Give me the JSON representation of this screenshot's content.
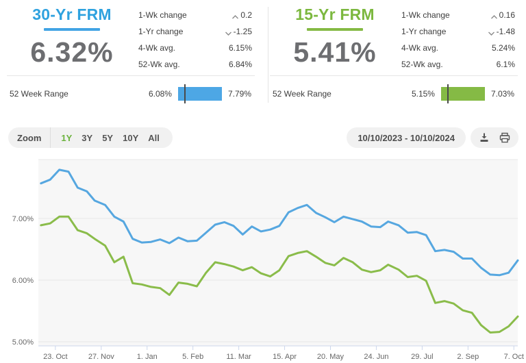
{
  "cards": [
    {
      "title": "30-Yr FRM",
      "value": "6.32%",
      "accent": "#2fa2df",
      "stats": [
        {
          "label": "1-Wk change",
          "value": "0.2",
          "direction": "up"
        },
        {
          "label": "1-Yr change",
          "value": "-1.25",
          "direction": "down"
        },
        {
          "label": "4-Wk avg.",
          "value": "6.15%"
        },
        {
          "label": "52-Wk avg.",
          "value": "6.84%"
        }
      ],
      "range": {
        "label": "52 Week Range",
        "min": "6.08%",
        "max": "7.79%",
        "marker_pct": 14
      }
    },
    {
      "title": "15-Yr FRM",
      "value": "5.41%",
      "accent": "#7cb83f",
      "stats": [
        {
          "label": "1-Wk change",
          "value": "0.16",
          "direction": "up"
        },
        {
          "label": "1-Yr change",
          "value": "-1.48",
          "direction": "down"
        },
        {
          "label": "4-Wk avg.",
          "value": "5.24%"
        },
        {
          "label": "52-Wk avg.",
          "value": "6.1%"
        }
      ],
      "range": {
        "label": "52 Week Range",
        "min": "5.15%",
        "max": "7.03%",
        "marker_pct": 14
      }
    }
  ],
  "toolbar": {
    "zoom_label": "Zoom",
    "zoom_options": [
      {
        "label": "1Y",
        "active": true
      },
      {
        "label": "3Y",
        "active": false
      },
      {
        "label": "5Y",
        "active": false
      },
      {
        "label": "10Y",
        "active": false
      },
      {
        "label": "All",
        "active": false
      }
    ],
    "date_range": "10/10/2023 - 10/10/2024",
    "icons": [
      "download-icon",
      "print-icon"
    ]
  },
  "chart_data": {
    "type": "line",
    "title": "",
    "xlabel": "",
    "ylabel": "",
    "x_min": "2023-10-10",
    "x_max": "2024-10-10",
    "ylim": [
      4.93,
      7.96
    ],
    "grid": true,
    "legend": "none",
    "plot_bg": "#f7f7f7",
    "grid_color": "#e7e7e7",
    "axis_color": "#ccd6eb",
    "label_color": "#666666",
    "y_ticks": [
      {
        "value": 5,
        "label": "5.00%"
      },
      {
        "value": 6,
        "label": "6.00%"
      },
      {
        "value": 7,
        "label": "7.00%"
      }
    ],
    "x_ticks": [
      {
        "date": "2023-10-23",
        "label": "23. Oct"
      },
      {
        "date": "2023-11-27",
        "label": "27. Nov"
      },
      {
        "date": "2024-01-01",
        "label": "1. Jan"
      },
      {
        "date": "2024-02-05",
        "label": "5. Feb"
      },
      {
        "date": "2024-03-11",
        "label": "11. Mar"
      },
      {
        "date": "2024-04-15",
        "label": "15. Apr"
      },
      {
        "date": "2024-05-20",
        "label": "20. May"
      },
      {
        "date": "2024-06-24",
        "label": "24. Jun"
      },
      {
        "date": "2024-07-29",
        "label": "29. Jul"
      },
      {
        "date": "2024-09-02",
        "label": "2. Sep"
      },
      {
        "date": "2024-10-07",
        "label": "7. Oct"
      }
    ],
    "dates": [
      "2023-10-12",
      "2023-10-19",
      "2023-10-26",
      "2023-11-02",
      "2023-11-09",
      "2023-11-16",
      "2023-11-22",
      "2023-11-30",
      "2023-12-07",
      "2023-12-14",
      "2023-12-21",
      "2023-12-28",
      "2024-01-04",
      "2024-01-11",
      "2024-01-18",
      "2024-01-25",
      "2024-02-01",
      "2024-02-08",
      "2024-02-15",
      "2024-02-22",
      "2024-02-29",
      "2024-03-07",
      "2024-03-14",
      "2024-03-21",
      "2024-03-28",
      "2024-04-04",
      "2024-04-11",
      "2024-04-18",
      "2024-04-25",
      "2024-05-02",
      "2024-05-09",
      "2024-05-16",
      "2024-05-23",
      "2024-05-30",
      "2024-06-06",
      "2024-06-13",
      "2024-06-20",
      "2024-06-27",
      "2024-07-03",
      "2024-07-11",
      "2024-07-18",
      "2024-07-25",
      "2024-08-01",
      "2024-08-08",
      "2024-08-15",
      "2024-08-22",
      "2024-08-29",
      "2024-09-05",
      "2024-09-12",
      "2024-09-19",
      "2024-09-26",
      "2024-10-03",
      "2024-10-10"
    ],
    "series": [
      {
        "name": "30-Yr FRM",
        "color": "#56a7e0",
        "values": [
          7.57,
          7.63,
          7.79,
          7.76,
          7.5,
          7.44,
          7.29,
          7.22,
          7.03,
          6.95,
          6.67,
          6.61,
          6.62,
          6.66,
          6.6,
          6.69,
          6.63,
          6.64,
          6.77,
          6.9,
          6.94,
          6.88,
          6.74,
          6.87,
          6.79,
          6.82,
          6.88,
          7.1,
          7.17,
          7.22,
          7.09,
          7.02,
          6.94,
          7.03,
          6.99,
          6.95,
          6.87,
          6.86,
          6.95,
          6.89,
          6.77,
          6.78,
          6.73,
          6.47,
          6.49,
          6.46,
          6.35,
          6.35,
          6.2,
          6.09,
          6.08,
          6.12,
          6.32
        ]
      },
      {
        "name": "15-Yr FRM",
        "color": "#8abc4a",
        "values": [
          6.89,
          6.92,
          7.03,
          7.03,
          6.81,
          6.76,
          6.67,
          6.56,
          6.29,
          6.38,
          5.95,
          5.93,
          5.89,
          5.87,
          5.76,
          5.96,
          5.94,
          5.9,
          6.12,
          6.29,
          6.26,
          6.22,
          6.16,
          6.21,
          6.11,
          6.06,
          6.16,
          6.39,
          6.44,
          6.47,
          6.38,
          6.28,
          6.24,
          6.36,
          6.29,
          6.17,
          6.13,
          6.16,
          6.25,
          6.17,
          6.05,
          6.07,
          5.99,
          5.63,
          5.66,
          5.62,
          5.51,
          5.47,
          5.27,
          5.15,
          5.16,
          5.25,
          5.41
        ]
      }
    ]
  }
}
